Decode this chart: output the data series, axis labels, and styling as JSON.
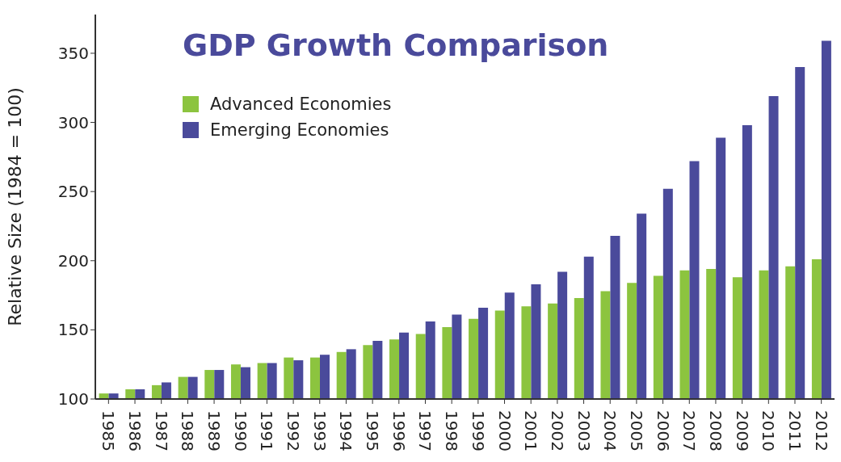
{
  "chart_data": {
    "type": "bar",
    "title": "GDP Growth Comparison",
    "ylabel": "Relative Size (1984 = 100)",
    "categories": [
      "1985",
      "1986",
      "1987",
      "1988",
      "1989",
      "1990",
      "1991",
      "1992",
      "1993",
      "1994",
      "1995",
      "1996",
      "1997",
      "1998",
      "1999",
      "2000",
      "2001",
      "2002",
      "2003",
      "2004",
      "2005",
      "2006",
      "2007",
      "2008",
      "2009",
      "2010",
      "2011",
      "2012"
    ],
    "series": [
      {
        "name": "Advanced Economies",
        "color": "#8cc43f",
        "values": [
          104,
          107,
          110,
          116,
          121,
          125,
          126,
          130,
          130,
          134,
          139,
          143,
          147,
          152,
          158,
          164,
          167,
          169,
          173,
          178,
          184,
          189,
          193,
          194,
          188,
          193,
          196,
          201
        ]
      },
      {
        "name": "Emerging Economies",
        "color": "#4a4a9b",
        "values": [
          104,
          107,
          112,
          116,
          121,
          123,
          126,
          128,
          132,
          136,
          142,
          148,
          156,
          161,
          166,
          177,
          183,
          192,
          203,
          218,
          234,
          252,
          272,
          289,
          298,
          319,
          340,
          359
        ]
      }
    ],
    "ylim": [
      100,
      378
    ],
    "yticks": [
      100,
      150,
      200,
      250,
      300,
      350
    ],
    "grid": false,
    "legend": "top left"
  }
}
